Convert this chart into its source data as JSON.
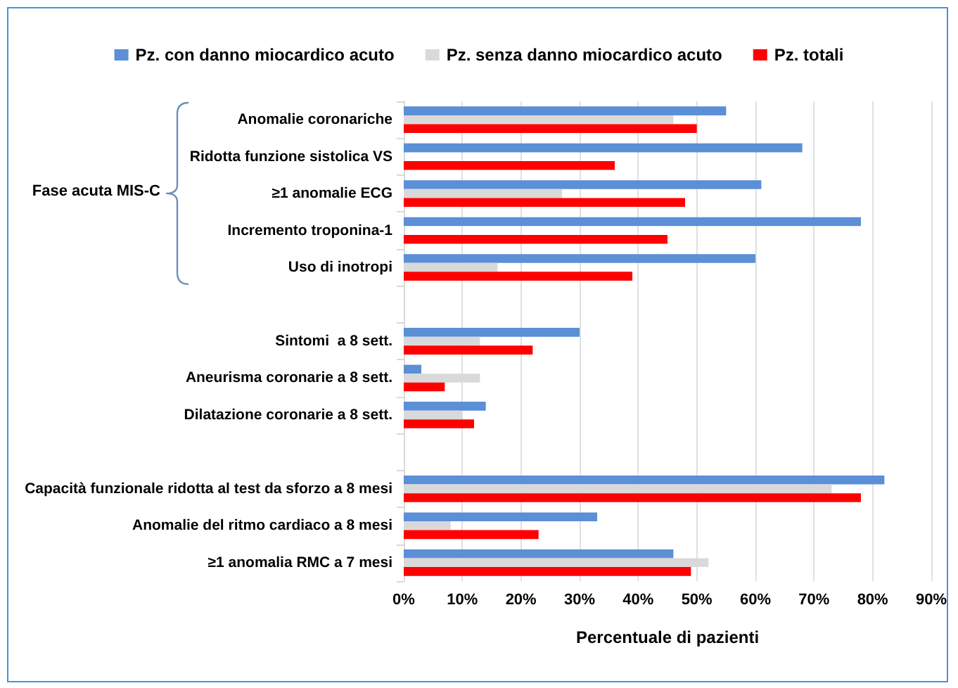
{
  "chart_data": {
    "type": "bar",
    "orientation": "horizontal",
    "xlabel": "Percentuale di pazienti",
    "categories": [
      "Anomalie coronariche",
      "Ridotta funzione sistolica VS",
      "≥1 anomalie ECG",
      "Incremento troponina-1",
      "Uso di inotropi",
      null,
      "Sintomi  a 8 sett.",
      "Aneurisma coronarie a 8 sett.",
      "Dilatazione coronarie a 8 sett.",
      null,
      "Capacità funzionale ridotta al test da sforzo a 8 mesi",
      "Anomalie del ritmo cardiaco a 8 mesi",
      "≥1 anomalia RMC a 7 mesi"
    ],
    "series": [
      {
        "name": "Pz. con danno miocardico acuto",
        "color": "#5b8fd6",
        "values": [
          55,
          68,
          61,
          78,
          60,
          null,
          30,
          3,
          14,
          null,
          82,
          33,
          46
        ]
      },
      {
        "name": "Pz. senza danno miocardico acuto",
        "color": "#d9d9d9",
        "values": [
          46,
          null,
          27,
          null,
          16,
          null,
          13,
          13,
          10,
          null,
          73,
          8,
          52
        ]
      },
      {
        "name": "Pz. totali",
        "color": "#ff0000",
        "values": [
          50,
          36,
          48,
          45,
          39,
          null,
          22,
          7,
          12,
          null,
          78,
          23,
          49
        ]
      }
    ],
    "xlim": [
      0,
      90
    ],
    "xticks": [
      {
        "value": 0,
        "label": "0%"
      },
      {
        "value": 10,
        "label": "10%"
      },
      {
        "value": 20,
        "label": "20%"
      },
      {
        "value": 30,
        "label": "30%"
      },
      {
        "value": 40,
        "label": "40%"
      },
      {
        "value": 50,
        "label": "50%"
      },
      {
        "value": 60,
        "label": "60%"
      },
      {
        "value": 70,
        "label": "70%"
      },
      {
        "value": 80,
        "label": "80%"
      },
      {
        "value": 90,
        "label": "90%"
      }
    ],
    "grid": "x",
    "legend": "top",
    "annotations": [
      "Fase acuta MIS-C"
    ]
  }
}
